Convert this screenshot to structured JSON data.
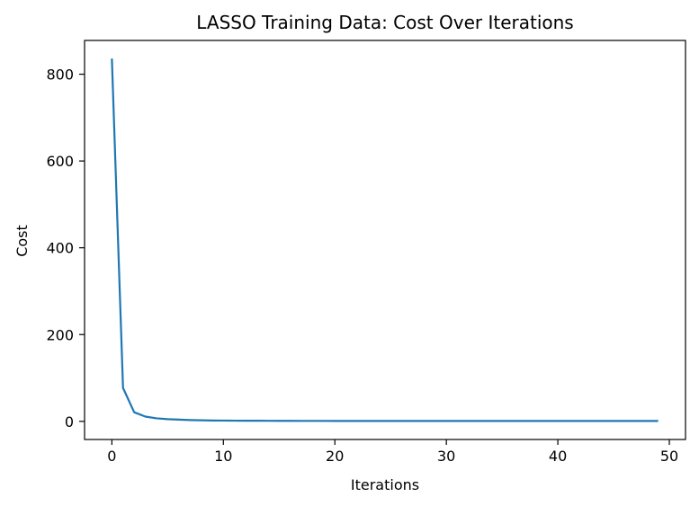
{
  "chart_data": {
    "type": "line",
    "title": "LASSO Training Data: Cost Over Iterations",
    "xlabel": "Iterations",
    "ylabel": "Cost",
    "xlim": [
      -2.45,
      51.45
    ],
    "ylim": [
      -41.8,
      877.8
    ],
    "xticks": [
      0,
      10,
      20,
      30,
      40,
      50
    ],
    "yticks": [
      0,
      200,
      400,
      600,
      800
    ],
    "grid": false,
    "legend": "none",
    "series": [
      {
        "color": "#1f77b4",
        "x": [
          0,
          1,
          2,
          3,
          4,
          5,
          6,
          7,
          8,
          9,
          10,
          11,
          12,
          13,
          14,
          15,
          16,
          17,
          18,
          19,
          20,
          21,
          22,
          23,
          24,
          25,
          26,
          27,
          28,
          29,
          30,
          31,
          32,
          33,
          34,
          35,
          36,
          37,
          38,
          39,
          40,
          41,
          42,
          43,
          44,
          45,
          46,
          47,
          48,
          49
        ],
        "values": [
          836,
          77,
          21,
          11,
          7,
          5,
          4,
          3,
          2.5,
          2,
          1.8,
          1.6,
          1.5,
          1.4,
          1.3,
          1.2,
          1.2,
          1.1,
          1.1,
          1.1,
          1,
          1,
          1,
          1,
          1,
          1,
          1,
          1,
          1,
          1,
          1,
          1,
          1,
          1,
          1,
          1,
          1,
          1,
          1,
          1,
          1,
          1,
          1,
          1,
          1,
          1,
          1,
          1,
          1,
          1
        ]
      }
    ]
  }
}
